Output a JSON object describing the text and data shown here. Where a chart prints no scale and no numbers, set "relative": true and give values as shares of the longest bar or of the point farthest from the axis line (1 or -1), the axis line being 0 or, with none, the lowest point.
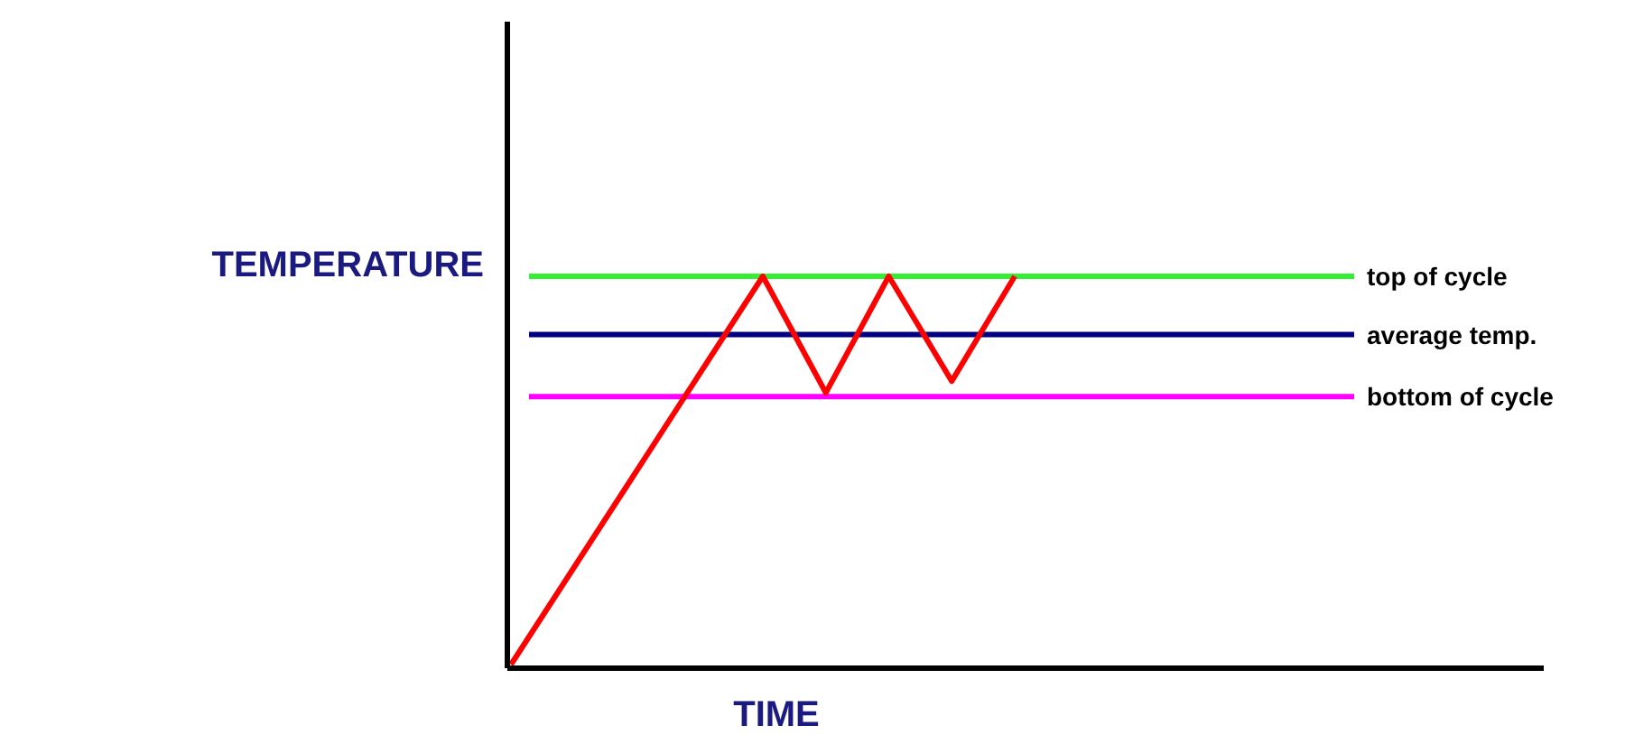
{
  "chart_data": {
    "type": "line",
    "relative": true,
    "xlabel": "TIME",
    "ylabel": "TEMPERATURE",
    "categories": [
      null,
      null,
      null,
      null,
      null,
      null,
      null,
      null,
      null
    ],
    "series": [
      {
        "color": "#ff0000",
        "values": [
          0,
          0.25,
          0.5,
          0.75,
          1,
          0.7,
          1,
          0.73,
          1
        ]
      }
    ],
    "ref_lines": [
      {
        "axis": "y",
        "value": 1,
        "label": "top of cycle",
        "color": "#33ee33"
      },
      {
        "axis": "y",
        "value": 0.85,
        "label": "average temp.",
        "color": "#000080"
      },
      {
        "axis": "y",
        "value": 0.69,
        "label": "bottom of cycle",
        "color": "#ff00ff"
      }
    ],
    "marker": "none",
    "line_style": "solid"
  }
}
